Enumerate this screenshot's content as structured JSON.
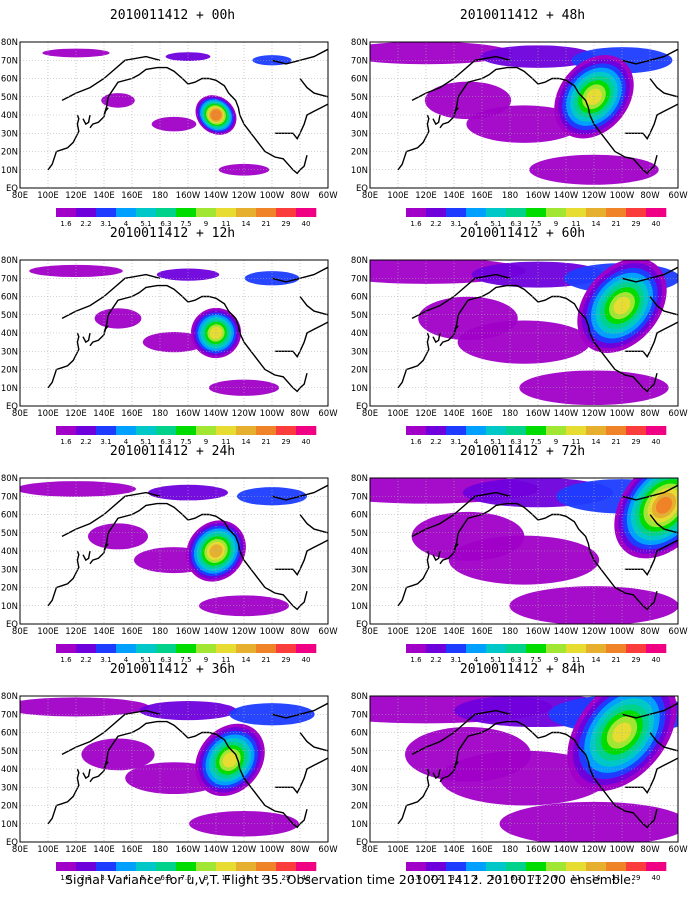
{
  "footer_text": "Signal Variance for u,v,T. Flight 35. Observation time 2010011412. 2010011200 ensemble.",
  "chart_data": {
    "type": "heatmap",
    "x_ticks": [
      "80E",
      "100E",
      "120E",
      "140E",
      "160E",
      "180",
      "160W",
      "140W",
      "120W",
      "100W",
      "80W",
      "60W"
    ],
    "y_ticks": [
      "EQ",
      "10N",
      "20N",
      "30N",
      "40N",
      "50N",
      "60N",
      "70N",
      "80N"
    ],
    "colorbar": {
      "levels": [
        "1.6",
        "2.2",
        "3.1",
        "4",
        "5.1",
        "6.3",
        "7.5",
        "9",
        "11",
        "14",
        "21",
        "29",
        "40"
      ],
      "colors": [
        "#a000c8",
        "#6e00dc",
        "#1e3cff",
        "#00a0ff",
        "#00c8c8",
        "#00d28c",
        "#00dc00",
        "#a0e632",
        "#e6dc32",
        "#e6af2d",
        "#f08228",
        "#fa3c3c",
        "#f00082"
      ]
    },
    "panels": [
      {
        "title": "2010011412 + 00h",
        "peak_level": "21",
        "peak_lon": "140W",
        "peak_lat": "40N"
      },
      {
        "title": "2010011412 + 12h",
        "peak_level": "11",
        "peak_lon": "140W",
        "peak_lat": "40N"
      },
      {
        "title": "2010011412 + 24h",
        "peak_level": "14",
        "peak_lon": "140W",
        "peak_lat": "40N"
      },
      {
        "title": "2010011412 + 36h",
        "peak_level": "11",
        "peak_lon": "130W",
        "peak_lat": "45N"
      },
      {
        "title": "2010011412 + 48h",
        "peak_level": "11",
        "peak_lon": "120W",
        "peak_lat": "50N"
      },
      {
        "title": "2010011412 + 60h",
        "peak_level": "11",
        "peak_lon": "100W",
        "peak_lat": "55N"
      },
      {
        "title": "2010011412 + 72h",
        "peak_level": "21",
        "peak_lon": "70W",
        "peak_lat": "65N"
      },
      {
        "title": "2010011412 + 84h",
        "peak_level": "11",
        "peak_lon": "100W",
        "peak_lat": "60N"
      }
    ]
  }
}
